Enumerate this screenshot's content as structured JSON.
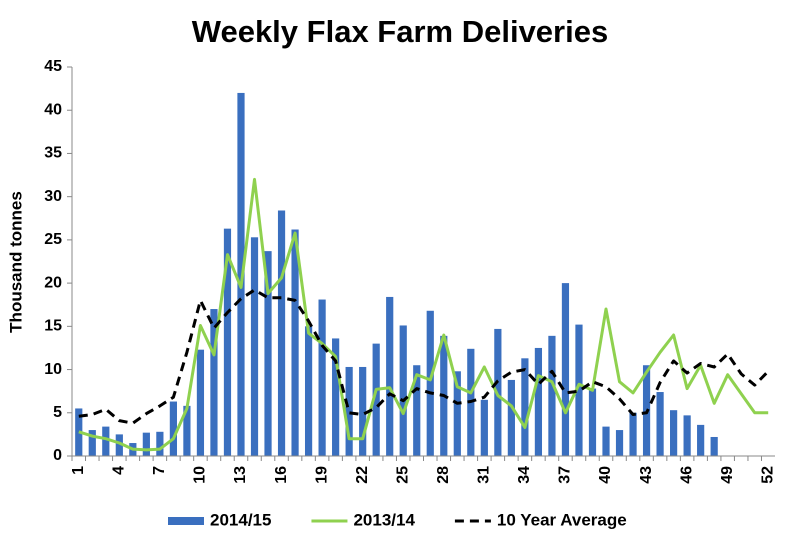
{
  "chart_data": {
    "type": "bar_line",
    "title": "Weekly Flax Farm Deliveries",
    "y_label": "Thousand tonnes",
    "categories": [
      "1",
      null,
      null,
      "4",
      null,
      null,
      "7",
      null,
      null,
      "10",
      null,
      null,
      "13",
      null,
      null,
      "16",
      null,
      null,
      "19",
      null,
      null,
      "22",
      null,
      null,
      "25",
      null,
      null,
      "28",
      null,
      null,
      "31",
      null,
      null,
      "34",
      null,
      null,
      "37",
      null,
      null,
      "40",
      null,
      null,
      "43",
      null,
      null,
      "46",
      null,
      null,
      "49",
      null,
      null,
      "52"
    ],
    "ylim": [
      0,
      45
    ],
    "yticks": [
      0,
      5,
      10,
      15,
      20,
      25,
      30,
      35,
      40,
      45
    ],
    "grid": false,
    "series": [
      {
        "name": "2014/15",
        "kind": "bar",
        "color": "#3a6fbf",
        "values": [
          5.5,
          3,
          3.4,
          2.5,
          1.5,
          2.7,
          2.8,
          6.3,
          5.8,
          12.3,
          17,
          26.3,
          42,
          25.3,
          23.7,
          28.4,
          26.2,
          15,
          18.1,
          13.6,
          10.3,
          10.3,
          13,
          18.4,
          15.1,
          10.5,
          16.8,
          13.9,
          9.8,
          12.4,
          6.5,
          14.7,
          8.8,
          11.3,
          12.5,
          13.9,
          20,
          15.2,
          7.8,
          3.4,
          3,
          5,
          10.5,
          7.4,
          5.3,
          4.7,
          3.6,
          2.2,
          null,
          null,
          null,
          null
        ]
      },
      {
        "name": "2013/14",
        "kind": "line",
        "color": "#8fd14f",
        "values": [
          2.8,
          2.3,
          2,
          1.5,
          0.8,
          0.7,
          0.8,
          2,
          5.5,
          15.1,
          11.7,
          23.3,
          19.5,
          32,
          18.8,
          20.6,
          25.8,
          14.2,
          13,
          11.5,
          2,
          2,
          7.7,
          7.9,
          4.9,
          9.4,
          8.8,
          14,
          8,
          7.3,
          10.3,
          7,
          5.8,
          3.3,
          9.3,
          8.6,
          5,
          8.3,
          7.6,
          17,
          8.6,
          7.3,
          9.7,
          12,
          14,
          7.8,
          10.5,
          6.1,
          9.4,
          7.2,
          5,
          5
        ]
      },
      {
        "name": "10 Year Average",
        "kind": "dashed",
        "color": "#000000",
        "values": [
          4.6,
          4.8,
          5.4,
          4.1,
          3.8,
          4.9,
          5.8,
          6.8,
          12,
          18,
          14.8,
          16.6,
          18.2,
          19.2,
          18.3,
          18.3,
          18,
          15.6,
          12.8,
          11,
          5,
          4.8,
          5.6,
          7.2,
          6.4,
          7.8,
          7.3,
          7,
          6.1,
          6.3,
          6.8,
          8.7,
          9.7,
          10,
          8.3,
          9.8,
          7.3,
          7.5,
          8.6,
          8,
          6.6,
          4.8,
          5,
          8.5,
          11,
          9.6,
          10.7,
          10.3,
          11.8,
          9.5,
          8.2,
          9.8
        ]
      }
    ]
  }
}
